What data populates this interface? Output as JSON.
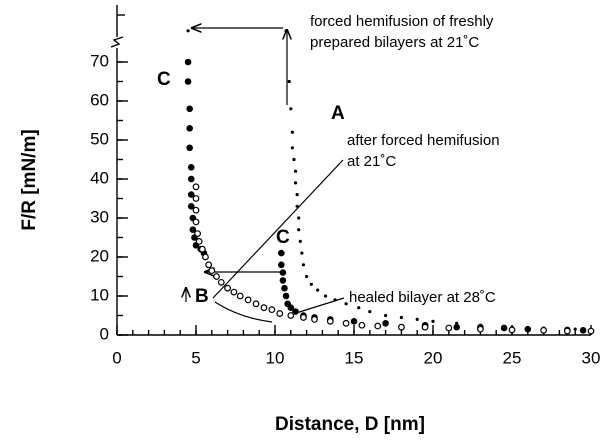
{
  "chart_data": {
    "type": "scatter",
    "xlabel": "Distance, D [nm]",
    "ylabel": "F/R [mN/m]",
    "xlim": [
      0,
      30
    ],
    "ylim": [
      0,
      80
    ],
    "xticks": [
      0,
      5,
      10,
      15,
      20,
      25,
      30
    ],
    "yticks": [
      0,
      10,
      20,
      30,
      40,
      50,
      60,
      70
    ],
    "xminor": 1,
    "yminor": 5,
    "y_break": true,
    "series": [
      {
        "marker": "dot",
        "color": "#000",
        "x": [
          4.5,
          10.7,
          10.9,
          11.0,
          11.1,
          11.1,
          11.2,
          11.3,
          11.3,
          11.4,
          11.4,
          11.5,
          11.5,
          11.6,
          11.7,
          11.8,
          12.0,
          12.3,
          12.7,
          13.2,
          13.8,
          14.5,
          15.3,
          16.0,
          17.0,
          18.0,
          19.0,
          20.0,
          21.5,
          23.0,
          25.0,
          27.0,
          29.0
        ],
        "values": [
          78,
          78,
          65,
          58,
          52,
          48,
          45,
          42,
          39,
          36,
          33,
          30,
          27,
          24,
          21,
          18,
          15,
          13,
          11.5,
          10,
          9,
          8,
          7,
          6,
          5,
          4.5,
          4,
          3.5,
          3,
          2.5,
          2,
          1.8,
          1.5
        ]
      },
      {
        "marker": "filled",
        "color": "#000",
        "x": [
          4.5,
          4.5,
          4.6,
          4.6,
          4.6,
          4.7,
          4.7,
          4.7,
          4.7,
          4.8,
          4.8,
          4.9,
          5.0,
          5.3,
          5.5,
          10.4,
          10.4,
          10.5,
          10.5,
          10.6,
          10.7,
          10.8,
          11.0,
          11.3,
          11.8,
          12.5,
          13.5,
          15.0,
          17.0,
          19.5,
          21.5,
          23.0,
          24.5,
          26.0,
          28.5,
          29.5
        ],
        "values": [
          70,
          65,
          58,
          53,
          48,
          43,
          40,
          36,
          33,
          30,
          27,
          25,
          23,
          22,
          21,
          21,
          18,
          16,
          14,
          12,
          10,
          8,
          7,
          6,
          5,
          4.5,
          4,
          3.5,
          3,
          2.5,
          2,
          2,
          1.8,
          1.5,
          1.3,
          1.2
        ]
      },
      {
        "marker": "open",
        "color": "#000",
        "x": [
          5.0,
          5.0,
          5.0,
          5.0,
          5.1,
          5.2,
          5.4,
          5.6,
          5.8,
          6.0,
          6.3,
          6.6,
          7.0,
          7.4,
          7.8,
          8.3,
          8.8,
          9.3,
          9.8,
          10.3,
          11.0,
          11.8,
          12.5,
          13.5,
          14.5,
          15.5,
          16.5,
          18.0,
          19.5,
          21.0,
          23.0,
          25.0,
          27.0,
          28.5,
          30.0
        ],
        "values": [
          38,
          35,
          32,
          29,
          26,
          24,
          22,
          20,
          18,
          16.5,
          15,
          13.5,
          12,
          11,
          10,
          9,
          8,
          7,
          6.5,
          5.5,
          5,
          4.5,
          4,
          3.5,
          3,
          2.5,
          2.3,
          2,
          2,
          1.8,
          1.5,
          1.3,
          1.2,
          1,
          1
        ]
      }
    ],
    "annotations": [
      {
        "lines": [
          "forced hemifusion of freshly",
          "prepared bilayers at 21˚C"
        ]
      },
      {
        "lines": [
          "after forced hemifusion",
          "at 21˚C"
        ]
      },
      {
        "lines": [
          "healed bilayer at 28˚C"
        ]
      },
      {
        "lines": [
          "A"
        ]
      },
      {
        "lines": [
          "B"
        ]
      },
      {
        "lines": [
          "C"
        ]
      },
      {
        "lines": [
          "C"
        ]
      }
    ]
  }
}
